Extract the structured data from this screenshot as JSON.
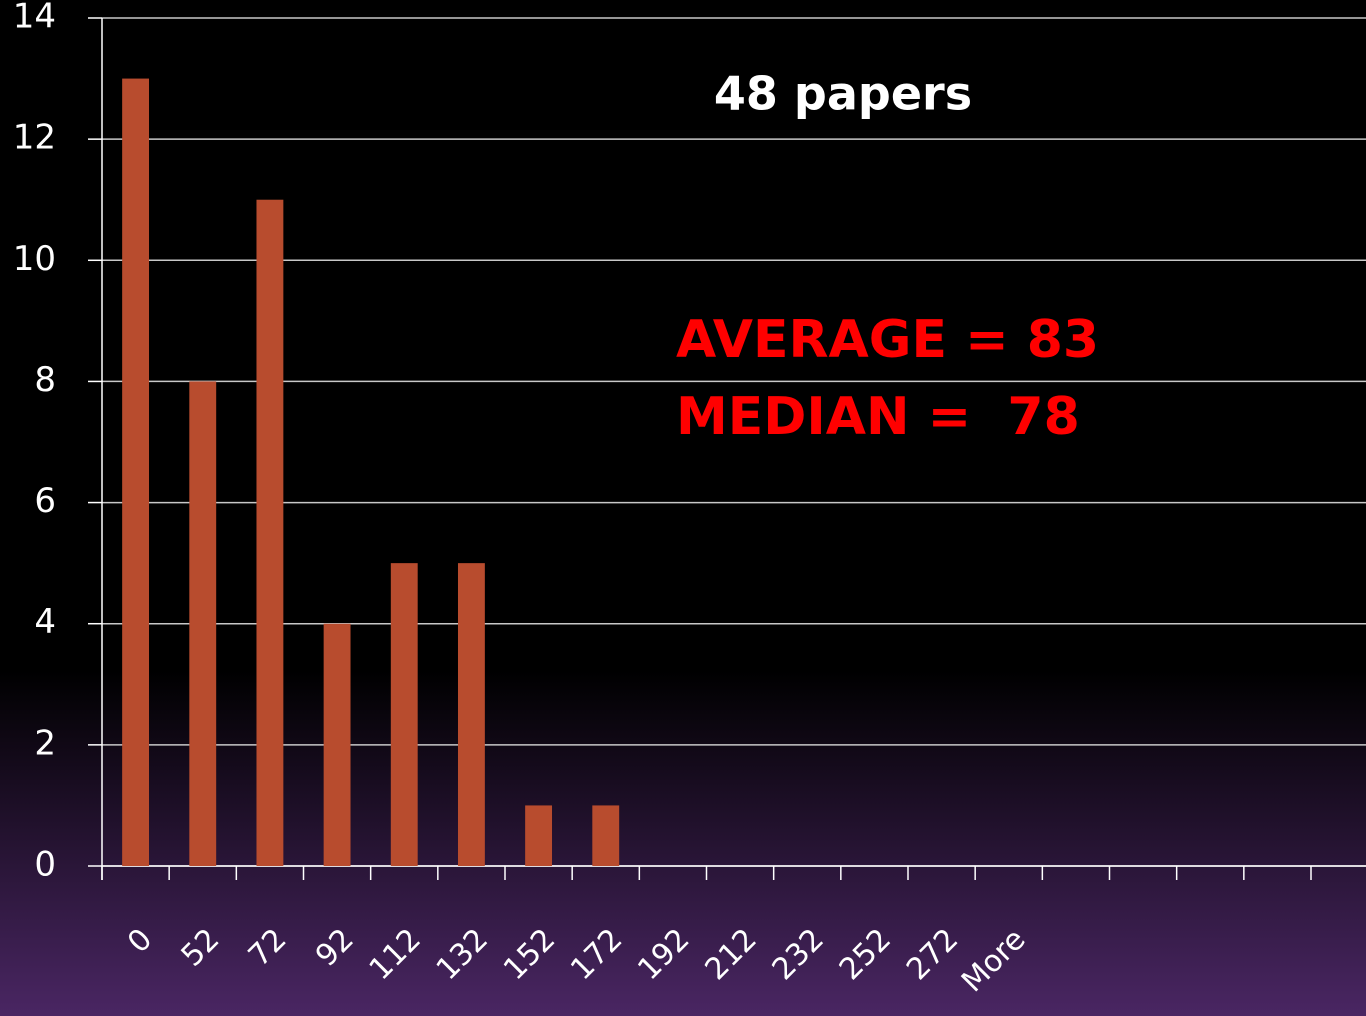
{
  "chart_data": {
    "type": "bar",
    "categories": [
      "0",
      "52",
      "72",
      "92",
      "112",
      "132",
      "152",
      "172",
      "192",
      "212",
      "232",
      "252",
      "272",
      "More",
      null,
      null,
      null,
      null
    ],
    "values": [
      13,
      8,
      11,
      4,
      5,
      5,
      1,
      1,
      0,
      0,
      0,
      0,
      0,
      0,
      null,
      null,
      null,
      null
    ],
    "color": "#b84c2e",
    "ylim": [
      0,
      14
    ],
    "yticks": [
      0,
      2,
      4,
      6,
      8,
      10,
      12,
      14
    ],
    "grid": true,
    "annotations": [
      "48 papers",
      "AVERAGE = 83",
      "MEDIAN =  78"
    ]
  }
}
